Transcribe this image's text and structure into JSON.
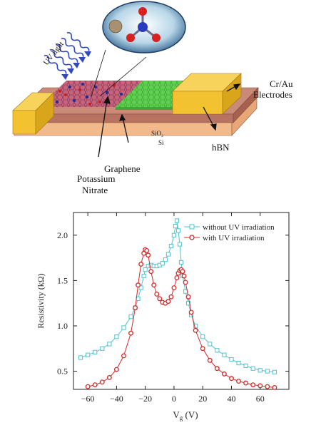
{
  "device_schematic": {
    "uv_label": "UV light",
    "electrodes_label_line1": "Cr/Au",
    "electrodes_label_line2": "Electrodes",
    "sio2_label": "SiO₂",
    "si_label": "Si",
    "hbn_label": "hBN",
    "graphene_label": "Graphene",
    "kno3_label_line1": "Potassium",
    "kno3_label_line2": "Nitrate",
    "colors": {
      "electrode_gold": "#f2c230",
      "graphene_pink": "#c8647a",
      "hbn_green": "#5fcf4e",
      "sio2_brown": "#c98a78",
      "si_peach": "#f5c7a0",
      "uv_blue": "#3247b8"
    }
  },
  "chart_data": {
    "type": "line",
    "xlabel": "V_g (V)",
    "ylabel": "Resistivity (kΩ)",
    "xlim": [
      -70,
      80
    ],
    "ylim": [
      0.3,
      2.25
    ],
    "x_ticks": [
      -60,
      -40,
      -20,
      0,
      20,
      40,
      60
    ],
    "y_ticks": [
      0.5,
      1.0,
      1.5,
      2.0
    ],
    "legend_position": "top-right",
    "grid": false,
    "series": [
      {
        "name": "without UV irradiation",
        "marker": "square",
        "color": "#4fc3d1",
        "x": [
          -65,
          -60,
          -55,
          -50,
          -45,
          -40,
          -35,
          -30,
          -27,
          -25,
          -23,
          -21,
          -20,
          -18,
          -16,
          -14,
          -12,
          -10,
          -8,
          -6,
          -4,
          -2,
          0,
          1,
          2,
          3,
          4,
          5,
          6,
          8,
          10,
          12,
          15,
          20,
          25,
          30,
          35,
          40,
          45,
          50,
          55,
          60,
          65,
          70
        ],
        "y": [
          0.65,
          0.68,
          0.71,
          0.75,
          0.8,
          0.88,
          0.98,
          1.1,
          1.2,
          1.3,
          1.42,
          1.55,
          1.62,
          1.66,
          1.67,
          1.66,
          1.66,
          1.67,
          1.69,
          1.73,
          1.79,
          1.88,
          2.0,
          2.1,
          2.16,
          2.05,
          1.9,
          1.7,
          1.55,
          1.38,
          1.25,
          1.12,
          1.0,
          0.88,
          0.8,
          0.73,
          0.68,
          0.63,
          0.59,
          0.56,
          0.53,
          0.51,
          0.5,
          0.49
        ]
      },
      {
        "name": "with UV irradiation",
        "marker": "circle",
        "color": "#d42a2a",
        "x": [
          -60,
          -55,
          -50,
          -45,
          -40,
          -35,
          -30,
          -27,
          -25,
          -23,
          -21,
          -20,
          -19,
          -18,
          -16,
          -14,
          -12,
          -10,
          -8,
          -6,
          -4,
          -2,
          0,
          2,
          3,
          4,
          5,
          6,
          7,
          8,
          10,
          12,
          15,
          20,
          25,
          30,
          35,
          40,
          45,
          50,
          55,
          60,
          65,
          70
        ],
        "y": [
          0.33,
          0.35,
          0.38,
          0.43,
          0.52,
          0.67,
          0.92,
          1.2,
          1.45,
          1.68,
          1.8,
          1.84,
          1.83,
          1.78,
          1.6,
          1.45,
          1.35,
          1.3,
          1.26,
          1.25,
          1.27,
          1.32,
          1.42,
          1.53,
          1.58,
          1.61,
          1.62,
          1.6,
          1.55,
          1.48,
          1.32,
          1.15,
          0.95,
          0.75,
          0.62,
          0.53,
          0.47,
          0.42,
          0.39,
          0.37,
          0.35,
          0.34,
          0.33,
          0.32
        ]
      }
    ]
  }
}
